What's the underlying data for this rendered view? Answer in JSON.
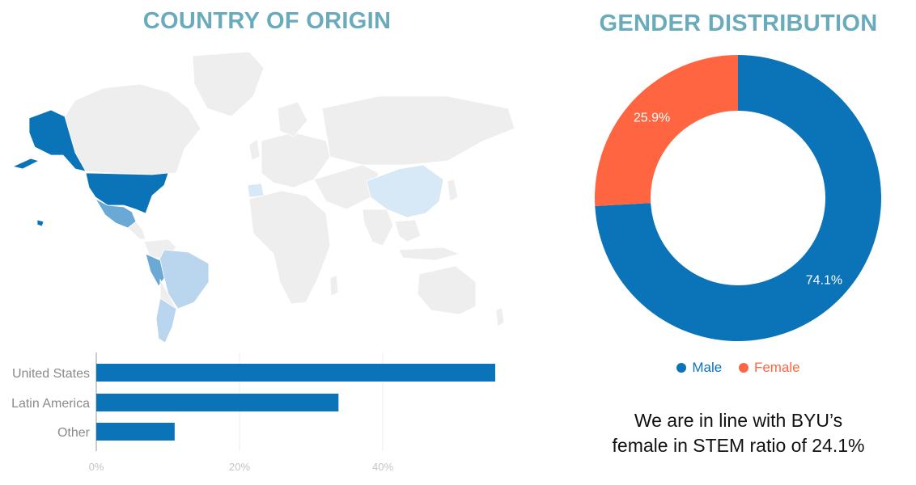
{
  "map": {
    "title": "COUNTRY OF ORIGIN",
    "colors": {
      "land": "#eeeeee",
      "border": "#ffffff",
      "high": "#0b73b8",
      "mid": "#6aa9d6",
      "low": "#bad6ee",
      "lowest": "#d7e8f6"
    },
    "highlighted": [
      {
        "name": "United States",
        "level": "high"
      },
      {
        "name": "Peru",
        "level": "mid"
      },
      {
        "name": "Mexico",
        "level": "mid"
      },
      {
        "name": "Brazil",
        "level": "low"
      },
      {
        "name": "Argentina",
        "level": "low"
      },
      {
        "name": "Chile",
        "level": "low"
      },
      {
        "name": "China",
        "level": "lowest"
      },
      {
        "name": "Spain",
        "level": "lowest"
      }
    ]
  },
  "chart_data": [
    {
      "type": "bar",
      "orientation": "horizontal",
      "categories": [
        "United States",
        "Latin America",
        "Other"
      ],
      "values": [
        56,
        34,
        11
      ],
      "xlim": [
        0,
        60
      ],
      "xticks": [
        "0%",
        "20%",
        "40%"
      ],
      "xtick_values": [
        0,
        20,
        40
      ],
      "grid": true,
      "color": "#0b73b8"
    },
    {
      "type": "pie",
      "donut": true,
      "title": "GENDER DISTRIBUTION",
      "categories": [
        "Male",
        "Female"
      ],
      "values": [
        74.1,
        25.9
      ],
      "labels": [
        "74.1%",
        "25.9%"
      ],
      "colors": [
        "#0b73b8",
        "#ff6540"
      ],
      "legend": "bottom"
    }
  ],
  "note": {
    "line1": "We are in line with BYU’s",
    "line2": "female in STEM ratio of 24.1%"
  }
}
